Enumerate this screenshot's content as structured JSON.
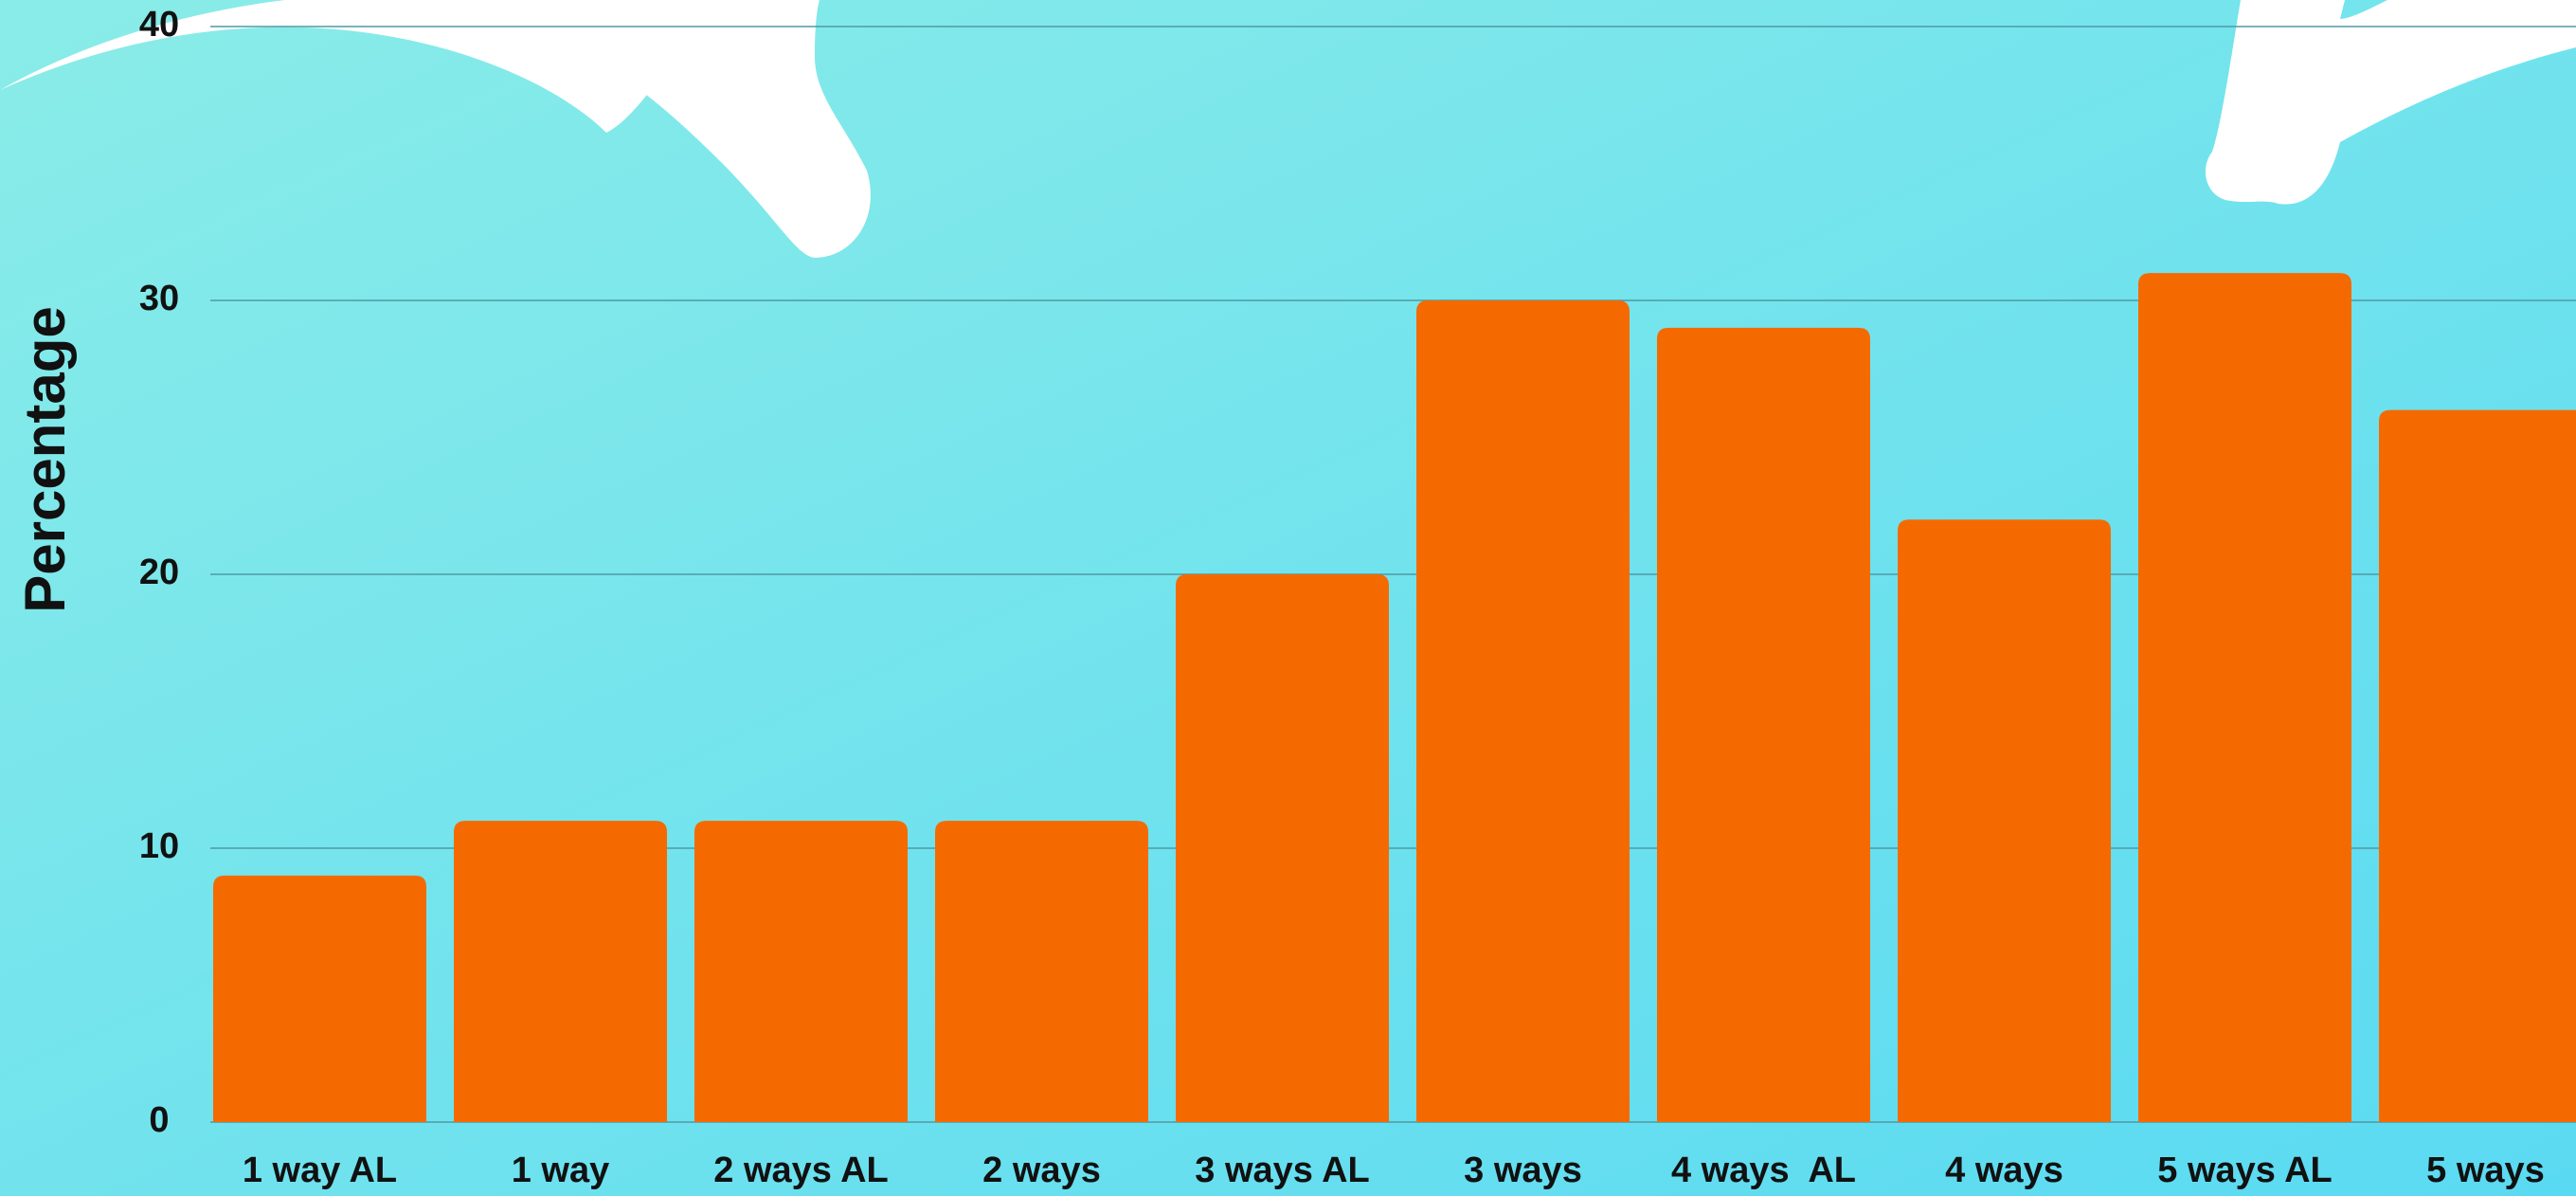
{
  "chart_data": {
    "type": "bar",
    "y_label": "Percentage",
    "categories": [
      "1 way AL",
      "1 way",
      "2 ways AL",
      "2 ways",
      "3 ways AL",
      "3 ways",
      "4 ways  AL",
      "4 ways",
      "5 ways AL",
      "5 ways"
    ],
    "values": [
      9,
      11,
      11,
      11,
      20,
      30,
      29,
      22,
      31,
      26
    ],
    "color": "#f56a00",
    "ylim": [
      0,
      40
    ],
    "yticks": [
      0,
      10,
      20,
      30,
      40
    ],
    "grid": true
  }
}
